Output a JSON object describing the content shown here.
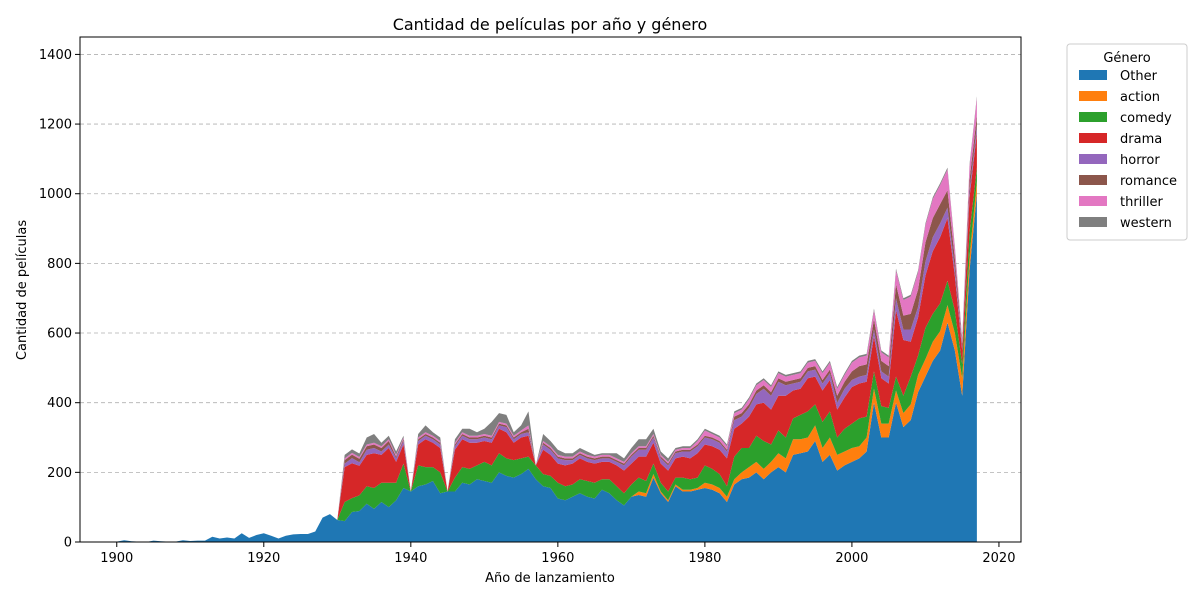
{
  "chart_data": {
    "type": "area",
    "stacked": true,
    "title": "Cantidad de películas por año y género",
    "xlabel": "Año de lanzamiento",
    "ylabel": "Cantidad de películas",
    "xlim": [
      1895,
      2023
    ],
    "ylim": [
      0,
      1450
    ],
    "xticks": [
      1900,
      1920,
      1940,
      1960,
      1980,
      2000,
      2020
    ],
    "yticks": [
      0,
      200,
      400,
      600,
      800,
      1000,
      1200,
      1400
    ],
    "grid": "y-dashed",
    "legend_title": "Género",
    "legend_position": "outside-right",
    "x": [
      1900,
      1901,
      1902,
      1903,
      1904,
      1905,
      1906,
      1907,
      1908,
      1909,
      1910,
      1911,
      1912,
      1913,
      1914,
      1915,
      1916,
      1917,
      1918,
      1919,
      1920,
      1921,
      1922,
      1923,
      1924,
      1925,
      1926,
      1927,
      1928,
      1929,
      1930,
      1931,
      1932,
      1933,
      1934,
      1935,
      1936,
      1937,
      1938,
      1939,
      1940,
      1941,
      1942,
      1943,
      1944,
      1945,
      1946,
      1947,
      1948,
      1949,
      1950,
      1951,
      1952,
      1953,
      1954,
      1955,
      1956,
      1957,
      1958,
      1959,
      1960,
      1961,
      1962,
      1963,
      1964,
      1965,
      1966,
      1967,
      1968,
      1969,
      1970,
      1971,
      1972,
      1973,
      1974,
      1975,
      1976,
      1977,
      1978,
      1979,
      1980,
      1981,
      1982,
      1983,
      1984,
      1985,
      1986,
      1987,
      1988,
      1989,
      1990,
      1991,
      1992,
      1993,
      1994,
      1995,
      1996,
      1997,
      1998,
      1999,
      2000,
      2001,
      2002,
      2003,
      2004,
      2005,
      2006,
      2007,
      2008,
      2009,
      2010,
      2011,
      2012,
      2013,
      2014,
      2015,
      2016,
      2017
    ],
    "series": [
      {
        "name": "Other",
        "color": "#1f77b4",
        "values": [
          1,
          5,
          2,
          1,
          0,
          4,
          2,
          1,
          1,
          5,
          3,
          4,
          4,
          15,
          10,
          13,
          10,
          25,
          12,
          20,
          25,
          18,
          10,
          18,
          22,
          23,
          23,
          30,
          70,
          80,
          63,
          60,
          86,
          89,
          110,
          95,
          115,
          100,
          120,
          155,
          145,
          160,
          165,
          175,
          140,
          145,
          145,
          170,
          165,
          180,
          175,
          170,
          200,
          190,
          185,
          195,
          210,
          180,
          160,
          155,
          125,
          120,
          130,
          140,
          130,
          125,
          150,
          140,
          120,
          105,
          130,
          135,
          130,
          185,
          140,
          115,
          160,
          145,
          145,
          150,
          155,
          150,
          140,
          115,
          165,
          180,
          185,
          200,
          180,
          200,
          215,
          200,
          250,
          255,
          260,
          290,
          230,
          250,
          205,
          220,
          230,
          240,
          260,
          400,
          300,
          300,
          400,
          330,
          350,
          430,
          475,
          520,
          550,
          630,
          550,
          420,
          780,
          1000
        ]
      },
      {
        "name": "action",
        "color": "#ff7f0e",
        "values": [
          0,
          0,
          0,
          0,
          0,
          0,
          0,
          0,
          0,
          0,
          0,
          0,
          0,
          0,
          0,
          0,
          0,
          0,
          0,
          0,
          0,
          0,
          0,
          0,
          0,
          0,
          0,
          0,
          0,
          0,
          0,
          0,
          0,
          0,
          0,
          0,
          0,
          0,
          0,
          0,
          0,
          0,
          0,
          0,
          0,
          0,
          0,
          0,
          0,
          0,
          0,
          0,
          0,
          0,
          0,
          0,
          0,
          0,
          0,
          0,
          0,
          0,
          0,
          0,
          0,
          0,
          0,
          0,
          0,
          0,
          0,
          10,
          10,
          10,
          5,
          5,
          5,
          5,
          5,
          5,
          15,
          15,
          15,
          15,
          15,
          20,
          30,
          30,
          30,
          30,
          40,
          40,
          45,
          40,
          40,
          45,
          40,
          50,
          45,
          40,
          40,
          35,
          40,
          40,
          40,
          40,
          35,
          40,
          45,
          50,
          50,
          55,
          55,
          50,
          50,
          50,
          40,
          35
        ]
      },
      {
        "name": "comedy",
        "color": "#2ca02c",
        "values": [
          0,
          0,
          0,
          0,
          0,
          0,
          0,
          0,
          0,
          0,
          0,
          0,
          0,
          0,
          0,
          0,
          0,
          0,
          0,
          0,
          0,
          0,
          0,
          0,
          0,
          0,
          0,
          0,
          0,
          0,
          0,
          55,
          40,
          45,
          50,
          60,
          55,
          70,
          50,
          70,
          0,
          60,
          50,
          40,
          60,
          0,
          40,
          45,
          45,
          40,
          55,
          50,
          55,
          50,
          50,
          45,
          35,
          40,
          35,
          35,
          45,
          40,
          35,
          40,
          45,
          45,
          30,
          40,
          40,
          35,
          35,
          40,
          35,
          30,
          25,
          25,
          20,
          35,
          30,
          30,
          50,
          45,
          40,
          30,
          65,
          70,
          55,
          75,
          80,
          50,
          65,
          60,
          60,
          70,
          75,
          60,
          75,
          75,
          50,
          65,
          70,
          80,
          60,
          50,
          50,
          45,
          40,
          50,
          80,
          55,
          90,
          80,
          80,
          70,
          65,
          40,
          70,
          40
        ]
      },
      {
        "name": "drama",
        "color": "#d62728",
        "values": [
          0,
          0,
          0,
          0,
          0,
          0,
          0,
          0,
          0,
          0,
          0,
          0,
          0,
          0,
          0,
          0,
          0,
          0,
          0,
          0,
          0,
          0,
          0,
          0,
          0,
          0,
          0,
          0,
          0,
          0,
          0,
          100,
          100,
          85,
          90,
          100,
          80,
          100,
          60,
          55,
          0,
          60,
          80,
          70,
          70,
          0,
          80,
          80,
          75,
          65,
          60,
          65,
          70,
          75,
          50,
          60,
          60,
          0,
          70,
          60,
          55,
          60,
          60,
          60,
          55,
          55,
          50,
          50,
          60,
          65,
          60,
          60,
          70,
          60,
          55,
          60,
          55,
          60,
          60,
          70,
          60,
          65,
          70,
          80,
          80,
          70,
          90,
          90,
          110,
          100,
          100,
          120,
          80,
          75,
          95,
          80,
          90,
          90,
          80,
          90,
          105,
          100,
          100,
          100,
          80,
          70,
          190,
          160,
          100,
          110,
          150,
          180,
          190,
          180,
          100,
          40,
          100,
          100
        ]
      },
      {
        "name": "horror",
        "color": "#9467bd",
        "values": [
          0,
          0,
          0,
          0,
          0,
          0,
          0,
          0,
          0,
          0,
          0,
          0,
          0,
          0,
          0,
          0,
          0,
          0,
          0,
          0,
          0,
          0,
          0,
          0,
          0,
          0,
          0,
          0,
          0,
          0,
          0,
          10,
          15,
          10,
          15,
          15,
          10,
          10,
          10,
          10,
          0,
          10,
          10,
          10,
          10,
          0,
          10,
          10,
          10,
          10,
          10,
          10,
          10,
          15,
          10,
          10,
          10,
          0,
          15,
          15,
          15,
          15,
          10,
          10,
          10,
          10,
          10,
          10,
          10,
          15,
          20,
          20,
          20,
          15,
          15,
          15,
          15,
          15,
          20,
          20,
          20,
          20,
          20,
          20,
          25,
          20,
          25,
          30,
          40,
          40,
          40,
          30,
          20,
          20,
          20,
          20,
          20,
          20,
          20,
          25,
          20,
          20,
          20,
          20,
          20,
          20,
          35,
          30,
          35,
          30,
          40,
          40,
          40,
          30,
          20,
          10,
          20,
          20
        ]
      },
      {
        "name": "romance",
        "color": "#8c564b",
        "values": [
          0,
          0,
          0,
          0,
          0,
          0,
          0,
          0,
          0,
          0,
          0,
          0,
          0,
          0,
          0,
          0,
          0,
          0,
          0,
          0,
          0,
          0,
          0,
          0,
          0,
          0,
          0,
          0,
          0,
          0,
          0,
          10,
          10,
          10,
          10,
          10,
          10,
          10,
          5,
          5,
          0,
          5,
          5,
          5,
          5,
          0,
          5,
          5,
          5,
          5,
          5,
          5,
          5,
          5,
          5,
          5,
          10,
          0,
          5,
          5,
          5,
          5,
          5,
          5,
          5,
          5,
          5,
          5,
          5,
          5,
          5,
          5,
          5,
          5,
          5,
          5,
          5,
          5,
          5,
          5,
          5,
          5,
          5,
          5,
          10,
          10,
          10,
          10,
          10,
          10,
          10,
          10,
          10,
          10,
          10,
          10,
          10,
          10,
          20,
          20,
          25,
          30,
          30,
          30,
          30,
          30,
          40,
          40,
          45,
          50,
          55,
          55,
          55,
          50,
          30,
          10,
          30,
          30
        ]
      },
      {
        "name": "thriller",
        "color": "#e377c2",
        "values": [
          0,
          0,
          0,
          0,
          0,
          0,
          0,
          0,
          0,
          0,
          0,
          0,
          0,
          0,
          0,
          0,
          0,
          0,
          0,
          0,
          0,
          0,
          0,
          0,
          0,
          0,
          0,
          0,
          0,
          0,
          0,
          5,
          5,
          5,
          5,
          5,
          5,
          5,
          5,
          5,
          0,
          5,
          5,
          5,
          5,
          0,
          5,
          5,
          5,
          5,
          5,
          5,
          5,
          5,
          5,
          5,
          10,
          0,
          5,
          5,
          5,
          5,
          5,
          5,
          5,
          5,
          5,
          5,
          5,
          5,
          5,
          5,
          5,
          5,
          5,
          5,
          5,
          5,
          5,
          10,
          15,
          10,
          10,
          10,
          10,
          10,
          15,
          15,
          15,
          15,
          15,
          15,
          15,
          15,
          15,
          15,
          20,
          20,
          20,
          20,
          25,
          25,
          25,
          25,
          25,
          25,
          40,
          45,
          50,
          50,
          50,
          55,
          55,
          60,
          30,
          10,
          40,
          50
        ]
      },
      {
        "name": "western",
        "color": "#7f7f7f",
        "values": [
          0,
          0,
          0,
          0,
          0,
          0,
          0,
          0,
          0,
          0,
          0,
          0,
          0,
          0,
          0,
          0,
          0,
          0,
          0,
          0,
          0,
          0,
          0,
          0,
          0,
          0,
          0,
          0,
          0,
          0,
          0,
          10,
          10,
          10,
          20,
          25,
          10,
          10,
          10,
          5,
          0,
          10,
          20,
          10,
          10,
          0,
          10,
          10,
          20,
          10,
          15,
          40,
          25,
          25,
          10,
          15,
          40,
          0,
          20,
          15,
          15,
          10,
          10,
          10,
          10,
          5,
          5,
          5,
          15,
          10,
          15,
          20,
          20,
          15,
          10,
          10,
          5,
          5,
          5,
          5,
          5,
          5,
          5,
          5,
          5,
          5,
          5,
          5,
          5,
          5,
          5,
          5,
          5,
          5,
          5,
          5,
          5,
          5,
          5,
          5,
          5,
          5,
          5,
          5,
          5,
          5,
          5,
          5,
          5,
          5,
          5,
          5,
          5,
          5,
          5,
          5,
          5,
          5
        ]
      }
    ]
  }
}
